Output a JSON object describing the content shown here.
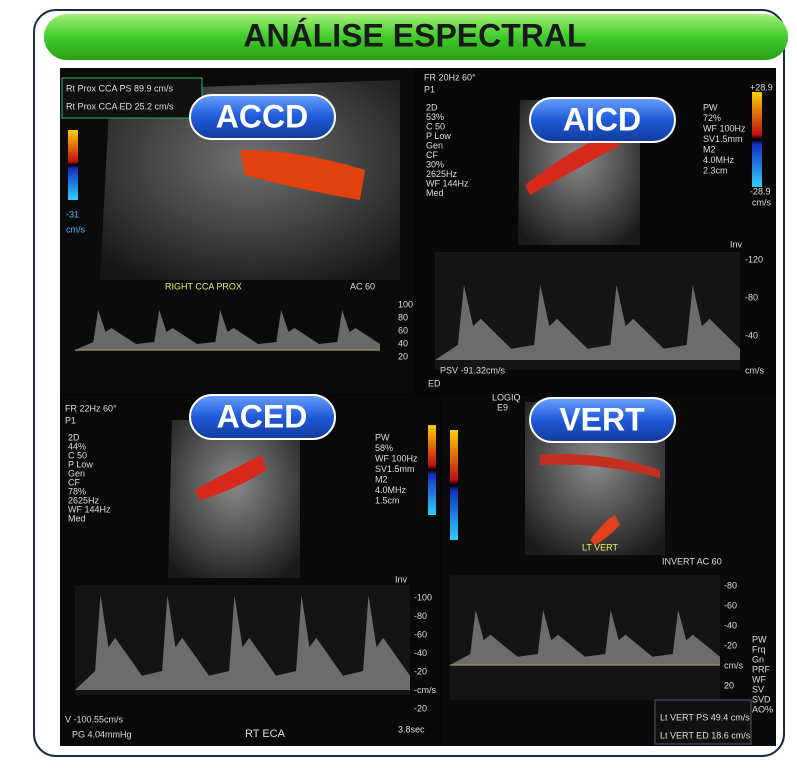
{
  "title": "ANÁLISE ESPECTRAL",
  "panels": [
    {
      "label": "ACCD",
      "readouts": [
        "Rt Prox CCA PS 89.9 cm/s",
        "Rt Prox CCA ED 25.2 cm/s"
      ],
      "texts": [
        "RIGHT CCA PROX",
        "AC 60",
        "-31",
        "cm/s"
      ],
      "scale": [
        "100",
        "80",
        "60",
        "40",
        "20"
      ]
    },
    {
      "label": "AICD",
      "header": [
        "FR 20Hz  60°",
        "P1"
      ],
      "left": [
        "2D",
        "53%",
        "C 50",
        "P Low",
        "Gen",
        "CF",
        "30%",
        "2625Hz",
        "WF 144Hz",
        "Med"
      ],
      "right": [
        "PW",
        "72%",
        "WF 100Hz",
        "SV1.5mm",
        "M2",
        "4.0MHz",
        "2.3cm"
      ],
      "bar": [
        "+28.9",
        "-28.9",
        "cm/s"
      ],
      "scale": [
        "-120",
        "-80",
        "-40"
      ],
      "texts": [
        "PSV -91.32cm/s",
        "cm/s",
        "ED",
        "Inv"
      ]
    },
    {
      "label": "ACED",
      "header": [
        "FR 22Hz  60°",
        "P1"
      ],
      "left": [
        "2D",
        "44%",
        "C 50",
        "P Low",
        "Gen",
        "CF",
        "78%",
        "2625Hz",
        "WF 144Hz",
        "Med"
      ],
      "right": [
        "PW",
        "58%",
        "WF 100Hz",
        "SV1.5mm",
        "M2",
        "4.0MHz",
        "1.5cm"
      ],
      "scale": [
        "-100",
        "-80",
        "-60",
        "-40",
        "-20",
        "-cm/s",
        "-20"
      ],
      "texts": [
        "V -100.55cm/s",
        "PG 4.04mmHg",
        "RT ECA",
        "3.8sec",
        "Inv"
      ]
    },
    {
      "label": "VERT",
      "header": [
        "LOGIQ",
        "E9"
      ],
      "texts": [
        "LT VERT",
        "INVERT  AC 60"
      ],
      "scale": [
        "-80",
        "-60",
        "-40",
        "-20",
        "cm/s",
        "20"
      ],
      "right": [
        "PW",
        "Frq",
        "Gn",
        "PRF",
        "WF",
        "SV",
        "SVD",
        "AO%"
      ],
      "readouts": [
        "Lt  VERT PS  49.4 cm/s",
        "Lt  VERT ED  18.6 cm/s"
      ]
    }
  ]
}
